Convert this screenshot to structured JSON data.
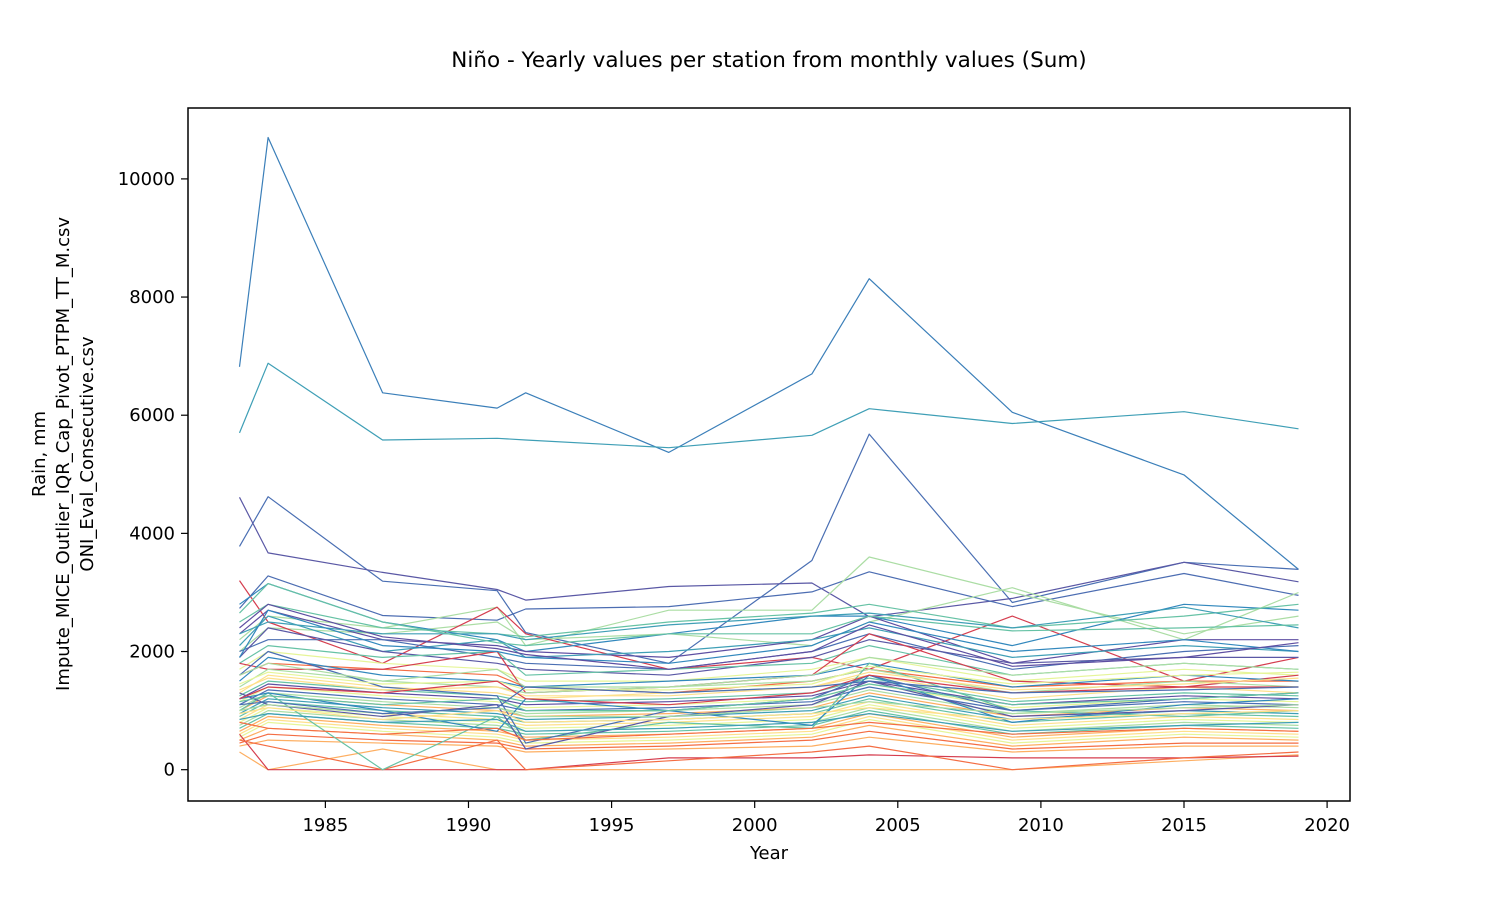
{
  "chart_data": {
    "type": "line",
    "title": "Niño - Yearly values per station from monthly values (Sum)",
    "xlabel": "Year",
    "ylabel_lines": [
      "Rain, mm",
      "Impute_MICE_Outlier_IQR_Cap_Pivot_PTPM_TT_M.csv",
      "ONI_Eval_Consecutive.csv"
    ],
    "xlim": [
      1980.2,
      2020.8
    ],
    "ylim": [
      -530,
      11200
    ],
    "x_ticks": [
      1985,
      1990,
      1995,
      2000,
      2005,
      2010,
      2015,
      2020
    ],
    "y_ticks": [
      0,
      2000,
      4000,
      6000,
      8000,
      10000
    ],
    "grid": false,
    "legend": "none",
    "colormap": "Spectral",
    "x": [
      1982,
      1983,
      1987,
      1991,
      1992,
      1997,
      2002,
      2004,
      2009,
      2015,
      2019
    ],
    "series": [
      {
        "color": "#3b7fb9",
        "values": [
          6820,
          10700,
          6380,
          6120,
          6380,
          5370,
          6700,
          8310,
          6050,
          4990,
          3390
        ]
      },
      {
        "color": "#3f9fb6",
        "values": [
          5700,
          6880,
          5580,
          5610,
          5580,
          5450,
          5660,
          6110,
          5860,
          6060,
          5770
        ]
      },
      {
        "color": "#4a6fb3",
        "values": [
          3780,
          4620,
          3190,
          3030,
          2320,
          1800,
          3540,
          5680,
          2830,
          3510,
          3390
        ]
      },
      {
        "color": "#5a58a5",
        "values": [
          4610,
          3670,
          3340,
          3050,
          2870,
          3100,
          3160,
          2590,
          2900,
          3510,
          3180
        ]
      },
      {
        "color": "#4c6db2",
        "values": [
          2730,
          3280,
          2610,
          2530,
          2720,
          2760,
          3010,
          3350,
          2760,
          3320,
          2950
        ]
      },
      {
        "color": "#abdda4",
        "values": [
          2200,
          2600,
          2400,
          2750,
          2100,
          2700,
          2700,
          3600,
          3000,
          2300,
          2600
        ]
      },
      {
        "color": "#abdda4",
        "values": [
          2000,
          2400,
          2300,
          2500,
          2200,
          2300,
          2100,
          2500,
          3080,
          2200,
          3000
        ]
      },
      {
        "color": "#d53e4f",
        "values": [
          3200,
          2500,
          1800,
          2750,
          2300,
          1700,
          1900,
          1700,
          2600,
          1500,
          1900
        ]
      },
      {
        "color": "#3288bd",
        "values": [
          2800,
          3150,
          2500,
          2200,
          2000,
          2300,
          2600,
          2600,
          2100,
          2800,
          2700
        ]
      },
      {
        "color": "#66c2a5",
        "values": [
          2500,
          2800,
          2400,
          2300,
          2250,
          2500,
          2650,
          2800,
          2400,
          2600,
          2800
        ]
      },
      {
        "color": "#5e4fa2",
        "values": [
          2300,
          2700,
          2200,
          2100,
          2000,
          1900,
          2200,
          2600,
          1800,
          2200,
          2200
        ]
      },
      {
        "color": "#3f9fb6",
        "values": [
          2100,
          2600,
          2000,
          2200,
          1900,
          2000,
          2200,
          2400,
          1900,
          2100,
          2000
        ]
      },
      {
        "color": "#4a6fb3",
        "values": [
          2000,
          2200,
          2200,
          1900,
          1800,
          1700,
          2000,
          2300,
          1700,
          2000,
          2100
        ]
      },
      {
        "color": "#5a58a5",
        "values": [
          1900,
          2400,
          2000,
          1800,
          1700,
          1600,
          1900,
          2200,
          1800,
          1900,
          1900
        ]
      },
      {
        "color": "#66c2a5",
        "values": [
          1800,
          2100,
          1900,
          2000,
          1600,
          1700,
          1800,
          2100,
          1600,
          1800,
          1700
        ]
      },
      {
        "color": "#e6f598",
        "values": [
          1700,
          2000,
          1800,
          1700,
          1500,
          1500,
          1700,
          1900,
          1500,
          1700,
          1600
        ]
      },
      {
        "color": "#f46d43",
        "values": [
          1600,
          1800,
          1700,
          1600,
          1400,
          1300,
          1500,
          1700,
          1400,
          1500,
          1500
        ]
      },
      {
        "color": "#d53e4f",
        "values": [
          1800,
          1700,
          1700,
          2000,
          1300,
          1400,
          1600,
          2300,
          1500,
          1400,
          1600
        ]
      },
      {
        "color": "#3288bd",
        "values": [
          1500,
          1900,
          1600,
          1500,
          1400,
          1500,
          1600,
          1800,
          1400,
          1600,
          1500
        ]
      },
      {
        "color": "#abdda4",
        "values": [
          1400,
          1700,
          1500,
          1400,
          1300,
          1400,
          1500,
          1700,
          1300,
          1500,
          1400
        ]
      },
      {
        "color": "#fee08b",
        "values": [
          1300,
          1600,
          1400,
          1300,
          1200,
          1300,
          1400,
          1600,
          1200,
          1400,
          1300
        ]
      },
      {
        "color": "#66c2a5",
        "values": [
          1250,
          1500,
          1350,
          1250,
          1150,
          1200,
          1300,
          1550,
          1150,
          1300,
          1250
        ]
      },
      {
        "color": "#5e4fa2",
        "values": [
          1200,
          1450,
          1300,
          1200,
          1100,
          1150,
          1250,
          1500,
          1100,
          1250,
          1200
        ]
      },
      {
        "color": "#e6f598",
        "values": [
          1150,
          1400,
          1250,
          1150,
          1050,
          1100,
          1200,
          1450,
          1050,
          1200,
          1150
        ]
      },
      {
        "color": "#4a6fb3",
        "values": [
          1100,
          1350,
          1200,
          1100,
          1000,
          1050,
          1150,
          1400,
          1000,
          1150,
          1100
        ]
      },
      {
        "color": "#abdda4",
        "values": [
          1050,
          1300,
          1150,
          1050,
          950,
          1000,
          1100,
          1350,
          950,
          1100,
          1050
        ]
      },
      {
        "color": "#fdae61",
        "values": [
          1000,
          1250,
          1100,
          1000,
          900,
          950,
          1050,
          1300,
          900,
          1050,
          1000
        ]
      },
      {
        "color": "#3f9fb6",
        "values": [
          950,
          1200,
          1050,
          950,
          850,
          900,
          1000,
          1250,
          850,
          1000,
          950
        ]
      },
      {
        "color": "#66c2a5",
        "values": [
          900,
          1150,
          1000,
          900,
          800,
          850,
          950,
          1200,
          800,
          950,
          900
        ]
      },
      {
        "color": "#fee08b",
        "values": [
          850,
          1100,
          950,
          850,
          750,
          800,
          900,
          1150,
          750,
          900,
          850
        ]
      },
      {
        "color": "#e6f598",
        "values": [
          800,
          1050,
          900,
          800,
          700,
          750,
          850,
          1100,
          700,
          850,
          800
        ]
      },
      {
        "color": "#abdda4",
        "values": [
          750,
          1000,
          850,
          750,
          650,
          700,
          800,
          1050,
          650,
          800,
          750
        ]
      },
      {
        "color": "#66c2a5",
        "values": [
          700,
          950,
          800,
          700,
          600,
          650,
          750,
          1000,
          600,
          750,
          700
        ]
      },
      {
        "color": "#fdae61",
        "values": [
          650,
          900,
          750,
          650,
          550,
          600,
          700,
          950,
          550,
          700,
          650
        ]
      },
      {
        "color": "#fee08b",
        "values": [
          600,
          850,
          700,
          600,
          500,
          550,
          650,
          900,
          500,
          650,
          600
        ]
      },
      {
        "color": "#e6f598",
        "values": [
          550,
          800,
          650,
          550,
          450,
          500,
          600,
          850,
          450,
          600,
          550
        ]
      },
      {
        "color": "#fdae61",
        "values": [
          500,
          700,
          600,
          500,
          400,
          450,
          550,
          750,
          400,
          550,
          500
        ]
      },
      {
        "color": "#f46d43",
        "values": [
          450,
          600,
          500,
          450,
          350,
          400,
          500,
          650,
          350,
          450,
          450
        ]
      },
      {
        "color": "#fdae61",
        "values": [
          400,
          500,
          450,
          400,
          300,
          350,
          400,
          550,
          300,
          400,
          400
        ]
      },
      {
        "color": "#fdae61",
        "values": [
          300,
          0,
          350,
          0,
          0,
          0,
          0,
          0,
          0,
          150,
          250
        ]
      },
      {
        "color": "#d53e4f",
        "values": [
          600,
          0,
          0,
          0,
          0,
          200,
          200,
          250,
          200,
          200,
          230
        ]
      },
      {
        "color": "#f46d43",
        "values": [
          500,
          400,
          0,
          500,
          0,
          150,
          300,
          400,
          0,
          200,
          300
        ]
      },
      {
        "color": "#66c2a5",
        "values": [
          1000,
          1300,
          0,
          900,
          500,
          800,
          700,
          1800,
          1000,
          900,
          1000
        ]
      },
      {
        "color": "#3288bd",
        "values": [
          1200,
          1300,
          1000,
          650,
          1200,
          1000,
          750,
          1600,
          800,
          1100,
          1200
        ]
      },
      {
        "color": "#5a58a5",
        "values": [
          1300,
          1100,
          900,
          1100,
          350,
          900,
          1100,
          1500,
          900,
          1000,
          1100
        ]
      },
      {
        "color": "#4a6fb3",
        "values": [
          1600,
          2000,
          1400,
          1250,
          450,
          1000,
          1200,
          1600,
          1000,
          1200,
          1300
        ]
      },
      {
        "color": "#3f9fb6",
        "values": [
          2300,
          2500,
          2300,
          2300,
          2200,
          2450,
          2600,
          2650,
          2400,
          2750,
          2400
        ]
      },
      {
        "color": "#66c2a5",
        "values": [
          2650,
          3150,
          2500,
          2150,
          2100,
          2300,
          2300,
          2600,
          2350,
          2400,
          2450
        ]
      },
      {
        "color": "#abdda4",
        "values": [
          1600,
          1800,
          1500,
          1700,
          1400,
          1400,
          1600,
          1900,
          1600,
          1800,
          1700
        ]
      },
      {
        "color": "#e6f598",
        "values": [
          1450,
          1650,
          1450,
          1500,
          1350,
          1350,
          1450,
          1750,
          1450,
          1600,
          1650
        ]
      },
      {
        "color": "#fee08b",
        "values": [
          1350,
          1550,
          1350,
          1400,
          1250,
          1250,
          1400,
          1650,
          1350,
          1450,
          1550
        ]
      },
      {
        "color": "#66c2a5",
        "values": [
          1150,
          1250,
          1100,
          1200,
          1000,
          1000,
          1200,
          1450,
          1100,
          1200,
          1300
        ]
      },
      {
        "color": "#3288bd",
        "values": [
          1900,
          2700,
          2100,
          2000,
          1900,
          1800,
          2100,
          2500,
          2000,
          2200,
          2000
        ]
      },
      {
        "color": "#5e4fa2",
        "values": [
          2400,
          2800,
          2250,
          2050,
          1950,
          1700,
          2000,
          2450,
          1750,
          1900,
          2150
        ]
      },
      {
        "color": "#d53e4f",
        "values": [
          1200,
          1400,
          1300,
          1500,
          1200,
          1100,
          1300,
          1600,
          1300,
          1400,
          1400
        ]
      },
      {
        "color": "#f46d43",
        "values": [
          800,
          700,
          600,
          700,
          500,
          600,
          700,
          800,
          600,
          700,
          650
        ]
      },
      {
        "color": "#fee08b",
        "values": [
          950,
          1050,
          850,
          1000,
          800,
          850,
          950,
          1050,
          850,
          950,
          1000
        ]
      },
      {
        "color": "#abdda4",
        "values": [
          1000,
          1100,
          950,
          1050,
          900,
          900,
          1050,
          1150,
          950,
          1050,
          1100
        ]
      },
      {
        "color": "#4a6fb3",
        "values": [
          1100,
          1150,
          950,
          1050,
          1400,
          1300,
          1400,
          1500,
          1300,
          1350,
          1400
        ]
      },
      {
        "color": "#3f9fb6",
        "values": [
          850,
          950,
          800,
          850,
          650,
          700,
          800,
          950,
          650,
          750,
          800
        ]
      }
    ]
  }
}
